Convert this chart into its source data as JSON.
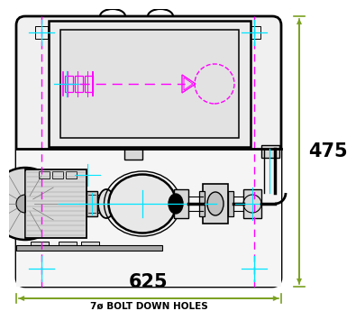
{
  "bg_color": "#ffffff",
  "dim_color": "#7aa020",
  "black": "#000000",
  "magenta": "#ff00ff",
  "cyan": "#00e5ff",
  "gray_light": "#f0f0f0",
  "gray_mid": "#d8d8d8",
  "gray_dark": "#a8a8a8",
  "bolt_text": "7ø BOLT DOWN HOLES",
  "dim_475": "475",
  "dim_625": "625"
}
